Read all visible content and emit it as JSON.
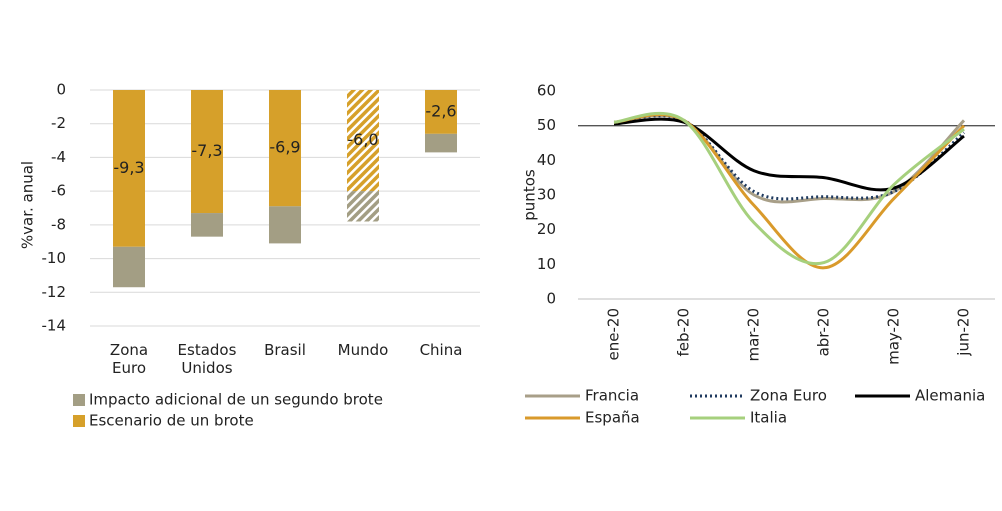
{
  "chart_data": [
    {
      "type": "stacked_bar",
      "ylabel": "%var. anual",
      "categories": [
        "Zona Euro",
        "Estados Unidos",
        "Brasil",
        "Mundo",
        "China"
      ],
      "series": [
        {
          "name": "Escenario de un brote",
          "color": "#d6a02a",
          "values": [
            -9.3,
            -7.3,
            -6.9,
            -6.0,
            -2.6
          ],
          "value_labels": [
            "-9,3",
            "-7,3",
            "-6,9",
            "-6,0",
            "-2,6"
          ],
          "hatched": [
            false,
            false,
            false,
            true,
            false
          ]
        },
        {
          "name": "Impacto adicional de un segundo brote",
          "color": "#a39e84",
          "values": [
            -2.4,
            -1.4,
            -2.2,
            -1.8,
            -1.1
          ],
          "hatched": [
            false,
            false,
            false,
            true,
            false
          ]
        }
      ],
      "legend_order": [
        1,
        0
      ],
      "ylim": [
        -14,
        0
      ],
      "yticks": [
        0,
        -2,
        -4,
        -6,
        -8,
        -10,
        -12,
        -14
      ],
      "grid": true
    },
    {
      "type": "line",
      "ylabel": "puntos",
      "categories": [
        "ene-20",
        "feb-20",
        "mar-20",
        "abr-20",
        "may-20",
        "jun-20"
      ],
      "series": [
        {
          "name": "Francia",
          "color": "#a89f88",
          "dash": "solid",
          "values": [
            51,
            51.5,
            30,
            29,
            31,
            51.5
          ]
        },
        {
          "name": "Zona Euro",
          "color": "#1f3a5f",
          "dash": "dotted",
          "values": [
            51,
            51.5,
            31,
            29.5,
            31,
            48
          ]
        },
        {
          "name": "Alemania",
          "color": "#000000",
          "dash": "solid",
          "values": [
            50.5,
            51,
            37,
            35,
            32,
            47
          ]
        },
        {
          "name": "España",
          "color": "#d99a2b",
          "dash": "solid",
          "values": [
            51,
            51.5,
            27,
            9,
            29,
            50
          ]
        },
        {
          "name": "Italia",
          "color": "#a6d07d",
          "dash": "solid",
          "values": [
            51,
            51.5,
            22,
            10.5,
            33,
            49
          ]
        }
      ],
      "reference_line": 50,
      "ylim": [
        0,
        60
      ],
      "yticks": [
        0,
        10,
        20,
        30,
        40,
        50,
        60
      ],
      "grid": false
    }
  ]
}
